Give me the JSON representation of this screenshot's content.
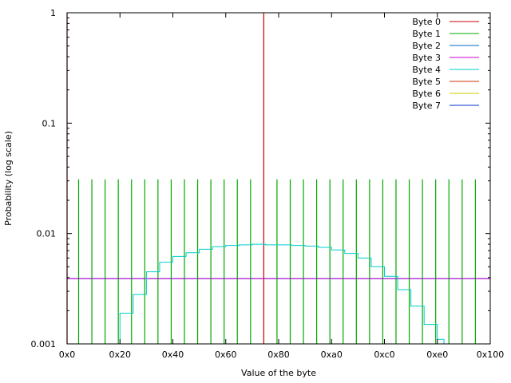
{
  "chart_data": {
    "type": "line",
    "title": "",
    "xlabel": "Value of the byte",
    "ylabel": "Probability (log scale)",
    "xlim": [
      0,
      256
    ],
    "ylim": [
      0.001,
      1
    ],
    "yscale": "log",
    "grid": false,
    "legend_position": "top-right",
    "x_ticks": [
      {
        "value": 0,
        "label": "0x0"
      },
      {
        "value": 32,
        "label": "0x20"
      },
      {
        "value": 64,
        "label": "0x40"
      },
      {
        "value": 96,
        "label": "0x60"
      },
      {
        "value": 128,
        "label": "0x80"
      },
      {
        "value": 160,
        "label": "0xa0"
      },
      {
        "value": 192,
        "label": "0xc0"
      },
      {
        "value": 224,
        "label": "0xe0"
      },
      {
        "value": 256,
        "label": "0x100"
      }
    ],
    "y_ticks": [
      {
        "value": 0.001,
        "label": "0.001"
      },
      {
        "value": 0.01,
        "label": "0.01"
      },
      {
        "value": 0.1,
        "label": "0.1"
      },
      {
        "value": 1,
        "label": "1"
      }
    ],
    "series": [
      {
        "name": "Byte 0",
        "color": "#cc0000",
        "style": "spikes",
        "points": [
          {
            "x": 0,
            "y": 1.0
          },
          {
            "x": 119,
            "y": 1.0
          }
        ]
      },
      {
        "name": "Byte 1",
        "color": "#00aa00",
        "style": "spikes",
        "points": [
          {
            "x": 7,
            "y": 0.031
          },
          {
            "x": 15,
            "y": 0.031
          },
          {
            "x": 23,
            "y": 0.031
          },
          {
            "x": 31,
            "y": 0.031
          },
          {
            "x": 39,
            "y": 0.031
          },
          {
            "x": 47,
            "y": 0.031
          },
          {
            "x": 55,
            "y": 0.031
          },
          {
            "x": 63,
            "y": 0.031
          },
          {
            "x": 71,
            "y": 0.031
          },
          {
            "x": 79,
            "y": 0.031
          },
          {
            "x": 87,
            "y": 0.031
          },
          {
            "x": 95,
            "y": 0.031
          },
          {
            "x": 103,
            "y": 0.031
          },
          {
            "x": 111,
            "y": 0.031
          },
          {
            "x": 127,
            "y": 0.031
          },
          {
            "x": 135,
            "y": 0.031
          },
          {
            "x": 143,
            "y": 0.031
          },
          {
            "x": 151,
            "y": 0.031
          },
          {
            "x": 159,
            "y": 0.031
          },
          {
            "x": 167,
            "y": 0.031
          },
          {
            "x": 175,
            "y": 0.031
          },
          {
            "x": 183,
            "y": 0.031
          },
          {
            "x": 191,
            "y": 0.031
          },
          {
            "x": 199,
            "y": 0.031
          },
          {
            "x": 207,
            "y": 0.031
          },
          {
            "x": 215,
            "y": 0.031
          },
          {
            "x": 223,
            "y": 0.031
          },
          {
            "x": 231,
            "y": 0.031
          },
          {
            "x": 239,
            "y": 0.031
          },
          {
            "x": 247,
            "y": 0.031
          }
        ]
      },
      {
        "name": "Byte 2",
        "color": "#0066cc",
        "style": "step",
        "points": [
          {
            "x": 0,
            "y": 0.0039
          },
          {
            "x": 64,
            "y": 0.0039
          },
          {
            "x": 128,
            "y": 0.0039
          },
          {
            "x": 192,
            "y": 0.0039
          },
          {
            "x": 256,
            "y": 0.0039
          }
        ]
      },
      {
        "name": "Byte 3",
        "color": "#cc00cc",
        "style": "step",
        "points": [
          {
            "x": 0,
            "y": 0.0039
          },
          {
            "x": 64,
            "y": 0.0039
          },
          {
            "x": 128,
            "y": 0.0039
          },
          {
            "x": 192,
            "y": 0.0039
          },
          {
            "x": 256,
            "y": 0.0039
          }
        ]
      },
      {
        "name": "Byte 4",
        "color": "#00cccc",
        "style": "step",
        "points": [
          {
            "x": 24,
            "y": 0.001
          },
          {
            "x": 32,
            "y": 0.0019
          },
          {
            "x": 40,
            "y": 0.0028
          },
          {
            "x": 48,
            "y": 0.0045
          },
          {
            "x": 56,
            "y": 0.0055
          },
          {
            "x": 64,
            "y": 0.0062
          },
          {
            "x": 72,
            "y": 0.0067
          },
          {
            "x": 80,
            "y": 0.0072
          },
          {
            "x": 88,
            "y": 0.0076
          },
          {
            "x": 96,
            "y": 0.0078
          },
          {
            "x": 104,
            "y": 0.0079
          },
          {
            "x": 112,
            "y": 0.008
          },
          {
            "x": 120,
            "y": 0.0079
          },
          {
            "x": 128,
            "y": 0.0079
          },
          {
            "x": 136,
            "y": 0.0078
          },
          {
            "x": 144,
            "y": 0.0077
          },
          {
            "x": 152,
            "y": 0.0075
          },
          {
            "x": 160,
            "y": 0.0071
          },
          {
            "x": 168,
            "y": 0.0066
          },
          {
            "x": 176,
            "y": 0.006
          },
          {
            "x": 184,
            "y": 0.005
          },
          {
            "x": 192,
            "y": 0.0041
          },
          {
            "x": 200,
            "y": 0.0031
          },
          {
            "x": 208,
            "y": 0.0022
          },
          {
            "x": 216,
            "y": 0.0015
          },
          {
            "x": 224,
            "y": 0.0011
          },
          {
            "x": 228,
            "y": 0.001
          }
        ]
      },
      {
        "name": "Byte 5",
        "color": "#cc3300",
        "style": "step",
        "points": []
      },
      {
        "name": "Byte 6",
        "color": "#cccc00",
        "style": "step",
        "points": []
      },
      {
        "name": "Byte 7",
        "color": "#0033cc",
        "style": "step",
        "points": []
      }
    ]
  }
}
